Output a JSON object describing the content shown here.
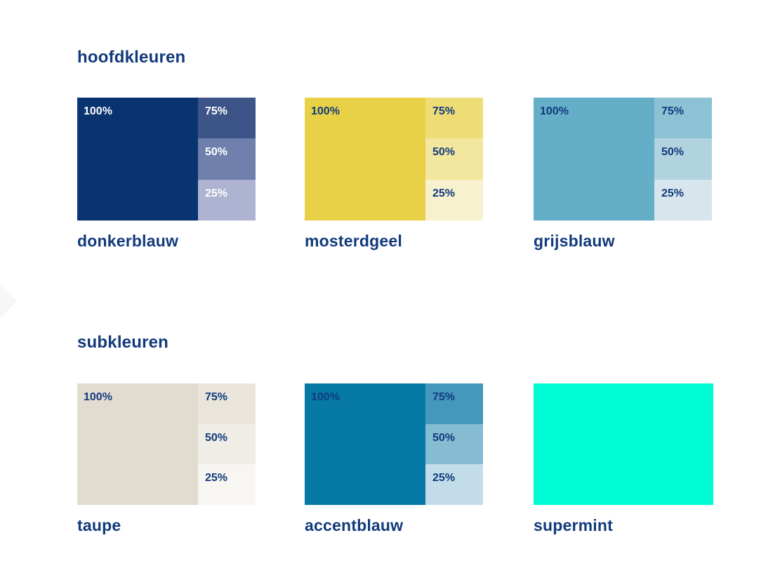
{
  "page": {
    "background": "#ffffff",
    "text_color": "#123a7c",
    "decoration_color": "#f7f6f8"
  },
  "sections": [
    {
      "heading": "hoofdkleuren",
      "swatches": [
        {
          "label": "donkerblauw",
          "percent_text_color": "#ffffff",
          "main": {
            "label": "100%",
            "color": "#0a346f"
          },
          "tints": [
            {
              "label": "75%",
              "color": "#3d5488"
            },
            {
              "label": "50%",
              "color": "#7080ac"
            },
            {
              "label": "25%",
              "color": "#adb3d0"
            }
          ]
        },
        {
          "label": "mosterdgeel",
          "percent_text_color": "#123a7c",
          "main": {
            "label": "100%",
            "color": "#e8d147"
          },
          "tints": [
            {
              "label": "75%",
              "color": "#eedd75"
            },
            {
              "label": "50%",
              "color": "#f3e69e"
            },
            {
              "label": "25%",
              "color": "#f8f1ce"
            }
          ]
        },
        {
          "label": "grijsblauw",
          "percent_text_color": "#123a7c",
          "main": {
            "label": "100%",
            "color": "#64aec7"
          },
          "tints": [
            {
              "label": "75%",
              "color": "#8bc2d4"
            },
            {
              "label": "50%",
              "color": "#b0d3df"
            },
            {
              "label": "25%",
              "color": "#d7e6ec"
            }
          ]
        }
      ]
    },
    {
      "heading": "subkleuren",
      "swatches": [
        {
          "label": "taupe",
          "percent_text_color": "#123a7c",
          "main": {
            "label": "100%",
            "color": "#e2dcd0"
          },
          "tints": [
            {
              "label": "75%",
              "color": "#e9e5db"
            },
            {
              "label": "50%",
              "color": "#f0ede7"
            },
            {
              "label": "25%",
              "color": "#f8f6f2"
            }
          ]
        },
        {
          "label": "accentblauw",
          "percent_text_color": "#123a7c",
          "main": {
            "label": "100%",
            "color": "#0679a6"
          },
          "tints": [
            {
              "label": "75%",
              "color": "#4398bc"
            },
            {
              "label": "50%",
              "color": "#85bcd2"
            },
            {
              "label": "25%",
              "color": "#c2dde9"
            }
          ]
        },
        {
          "label": "supermint",
          "solid": true,
          "main": {
            "color": "#00fcd2"
          }
        }
      ]
    }
  ]
}
